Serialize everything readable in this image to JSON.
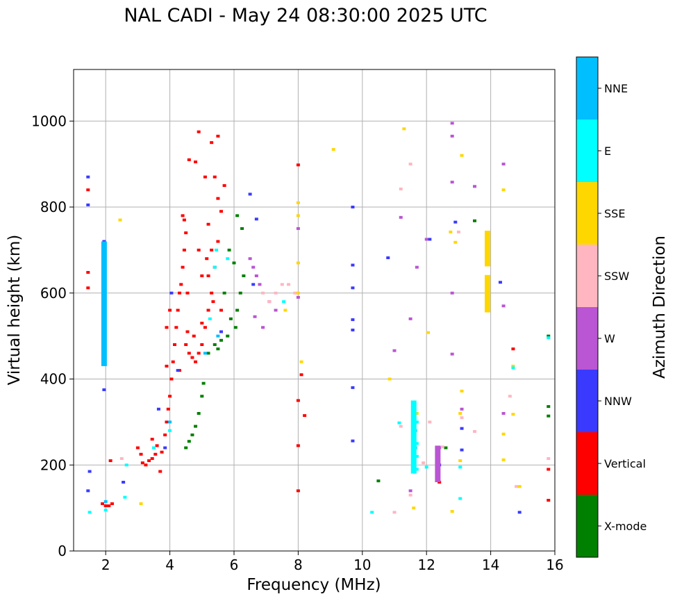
{
  "chart_data": {
    "type": "scatter",
    "title": "NAL CADI - May 24 08:30:00 2025 UTC",
    "xlabel": "Frequency (MHz)",
    "ylabel": "Virtual height (km)",
    "xlim": [
      1.0,
      16.0
    ],
    "ylim": [
      0,
      1120
    ],
    "xticks": [
      2,
      4,
      6,
      8,
      10,
      12,
      14,
      16
    ],
    "yticks": [
      0,
      200,
      400,
      600,
      800,
      1000
    ],
    "xtick_labels": [
      "2",
      "4",
      "6",
      "8",
      "10",
      "12",
      "14",
      "16"
    ],
    "ytick_labels": [
      "0",
      "200",
      "400",
      "600",
      "800",
      "1000"
    ],
    "grid": true,
    "colorbar": {
      "label": "Azimuth Direction",
      "categories": [
        {
          "name": "X-mode",
          "color": "#008000"
        },
        {
          "name": "Vertical",
          "color": "#ff0000"
        },
        {
          "name": "NNW",
          "color": "#3a3aff"
        },
        {
          "name": "W",
          "color": "#ba55d3"
        },
        {
          "name": "SSW",
          "color": "#ffb6c1"
        },
        {
          "name": "SSE",
          "color": "#ffd700"
        },
        {
          "name": "E",
          "color": "#00ffff"
        },
        {
          "name": "NNE",
          "color": "#00bfff"
        }
      ]
    },
    "series": [
      {
        "name": "Vertical",
        "color": "#ff0000",
        "points": [
          [
            1.45,
            840
          ],
          [
            1.45,
            648
          ],
          [
            1.45,
            612
          ],
          [
            1.9,
            110
          ],
          [
            2.0,
            105
          ],
          [
            2.1,
            105
          ],
          [
            2.2,
            110
          ],
          [
            2.15,
            210
          ],
          [
            3.0,
            240
          ],
          [
            3.1,
            225
          ],
          [
            3.15,
            205
          ],
          [
            3.25,
            200
          ],
          [
            3.35,
            210
          ],
          [
            3.45,
            215
          ],
          [
            3.55,
            225
          ],
          [
            3.45,
            260
          ],
          [
            3.6,
            245
          ],
          [
            3.75,
            230
          ],
          [
            3.85,
            270
          ],
          [
            3.9,
            300
          ],
          [
            3.95,
            330
          ],
          [
            4.0,
            360
          ],
          [
            4.05,
            400
          ],
          [
            4.1,
            440
          ],
          [
            4.15,
            480
          ],
          [
            4.2,
            520
          ],
          [
            4.25,
            560
          ],
          [
            4.3,
            600
          ],
          [
            4.35,
            620
          ],
          [
            4.4,
            660
          ],
          [
            4.45,
            700
          ],
          [
            4.5,
            740
          ],
          [
            4.4,
            780
          ],
          [
            3.9,
            430
          ],
          [
            3.9,
            520
          ],
          [
            4.0,
            560
          ],
          [
            4.5,
            480
          ],
          [
            4.6,
            460
          ],
          [
            4.7,
            450
          ],
          [
            4.8,
            440
          ],
          [
            4.9,
            460
          ],
          [
            5.0,
            480
          ],
          [
            5.1,
            520
          ],
          [
            5.2,
            560
          ],
          [
            5.3,
            600
          ],
          [
            4.6,
            910
          ],
          [
            4.8,
            905
          ],
          [
            5.3,
            950
          ],
          [
            5.4,
            870
          ],
          [
            5.5,
            820
          ],
          [
            5.6,
            790
          ],
          [
            5.5,
            720
          ],
          [
            5.4,
            660
          ],
          [
            5.3,
            700
          ],
          [
            5.2,
            640
          ],
          [
            5.0,
            640
          ],
          [
            4.9,
            700
          ],
          [
            5.2,
            760
          ],
          [
            5.1,
            870
          ],
          [
            4.9,
            975
          ],
          [
            5.5,
            965
          ],
          [
            5.7,
            850
          ],
          [
            5.6,
            560
          ],
          [
            3.7,
            185
          ],
          [
            4.45,
            770
          ],
          [
            4.55,
            600
          ],
          [
            4.75,
            500
          ],
          [
            5.0,
            530
          ],
          [
            5.35,
            580
          ],
          [
            5.15,
            680
          ],
          [
            4.3,
            420
          ],
          [
            4.55,
            510
          ],
          [
            8.0,
            898
          ],
          [
            8.1,
            410
          ],
          [
            8.2,
            315
          ],
          [
            8.0,
            245
          ],
          [
            8.0,
            140
          ],
          [
            8.0,
            350
          ],
          [
            12.4,
            160
          ],
          [
            14.7,
            470
          ],
          [
            15.8,
            190
          ],
          [
            15.8,
            118
          ]
        ]
      },
      {
        "name": "X-mode",
        "color": "#008000",
        "points": [
          [
            4.5,
            240
          ],
          [
            4.6,
            255
          ],
          [
            4.7,
            270
          ],
          [
            4.8,
            290
          ],
          [
            4.9,
            320
          ],
          [
            5.0,
            360
          ],
          [
            5.05,
            390
          ],
          [
            5.2,
            460
          ],
          [
            5.4,
            480
          ],
          [
            5.6,
            490
          ],
          [
            5.8,
            500
          ],
          [
            5.9,
            540
          ],
          [
            6.1,
            560
          ],
          [
            6.2,
            600
          ],
          [
            6.3,
            640
          ],
          [
            6.0,
            670
          ],
          [
            6.1,
            780
          ],
          [
            5.7,
            600
          ],
          [
            5.85,
            700
          ],
          [
            6.25,
            750
          ],
          [
            5.5,
            470
          ],
          [
            6.05,
            520
          ],
          [
            10.5,
            163
          ],
          [
            12.6,
            240
          ],
          [
            13.5,
            768
          ],
          [
            15.8,
            500
          ],
          [
            15.8,
            336
          ],
          [
            15.8,
            314
          ]
        ]
      },
      {
        "name": "NNW",
        "color": "#3a3aff",
        "points": [
          [
            1.45,
            870
          ],
          [
            1.45,
            805
          ],
          [
            1.5,
            185
          ],
          [
            1.45,
            140
          ],
          [
            1.95,
            720
          ],
          [
            1.95,
            375
          ],
          [
            2.55,
            160
          ],
          [
            3.65,
            330
          ],
          [
            3.85,
            240
          ],
          [
            4.05,
            600
          ],
          [
            4.25,
            420
          ],
          [
            5.6,
            510
          ],
          [
            6.5,
            830
          ],
          [
            6.7,
            772
          ],
          [
            6.6,
            620
          ],
          [
            9.7,
            800
          ],
          [
            9.7,
            665
          ],
          [
            9.7,
            612
          ],
          [
            9.7,
            538
          ],
          [
            9.7,
            514
          ],
          [
            9.7,
            380
          ],
          [
            9.7,
            256
          ],
          [
            11.6,
            330
          ],
          [
            12.1,
            725
          ],
          [
            12.4,
            200
          ],
          [
            12.9,
            765
          ],
          [
            13.1,
            285
          ],
          [
            13.1,
            235
          ],
          [
            14.3,
            625
          ],
          [
            14.9,
            90
          ],
          [
            10.8,
            682
          ]
        ]
      },
      {
        "name": "W",
        "color": "#ba55d3",
        "points": [
          [
            6.5,
            680
          ],
          [
            6.6,
            660
          ],
          [
            6.7,
            640
          ],
          [
            6.8,
            620
          ],
          [
            6.65,
            545
          ],
          [
            6.9,
            520
          ],
          [
            7.1,
            580
          ],
          [
            7.3,
            560
          ],
          [
            11.0,
            466
          ],
          [
            11.5,
            540
          ],
          [
            11.7,
            660
          ],
          [
            12.0,
            725
          ],
          [
            12.35,
            220
          ],
          [
            12.4,
            240
          ],
          [
            12.8,
            995
          ],
          [
            12.8,
            965
          ],
          [
            12.8,
            858
          ],
          [
            12.8,
            600
          ],
          [
            12.8,
            458
          ],
          [
            13.1,
            330
          ],
          [
            13.5,
            848
          ],
          [
            14.4,
            900
          ],
          [
            14.4,
            570
          ],
          [
            14.4,
            320
          ],
          [
            11.5,
            140
          ],
          [
            11.2,
            776
          ],
          [
            8.0,
            590
          ],
          [
            8.0,
            750
          ]
        ]
      },
      {
        "name": "SSW",
        "color": "#ffb6c1",
        "points": [
          [
            2.5,
            215
          ],
          [
            6.9,
            600
          ],
          [
            7.1,
            580
          ],
          [
            7.3,
            600
          ],
          [
            7.5,
            620
          ],
          [
            7.7,
            620
          ],
          [
            7.9,
            600
          ],
          [
            11.2,
            842
          ],
          [
            11.2,
            290
          ],
          [
            11.5,
            130
          ],
          [
            11.5,
            900
          ],
          [
            11.9,
            205
          ],
          [
            12.1,
            300
          ],
          [
            12.5,
            242
          ],
          [
            13.0,
            742
          ],
          [
            13.1,
            310
          ],
          [
            13.5,
            278
          ],
          [
            14.6,
            360
          ],
          [
            14.8,
            150
          ],
          [
            15.8,
            215
          ],
          [
            11.0,
            90
          ]
        ]
      },
      {
        "name": "SSE",
        "color": "#ffd700",
        "points": [
          [
            2.45,
            770
          ],
          [
            3.1,
            110
          ],
          [
            7.6,
            560
          ],
          [
            8.0,
            600
          ],
          [
            8.0,
            670
          ],
          [
            8.0,
            780
          ],
          [
            8.0,
            810
          ],
          [
            8.1,
            440
          ],
          [
            9.1,
            934
          ],
          [
            10.85,
            400
          ],
          [
            11.3,
            982
          ],
          [
            11.6,
            100
          ],
          [
            12.05,
            508
          ],
          [
            12.75,
            742
          ],
          [
            12.9,
            718
          ],
          [
            13.1,
            920
          ],
          [
            13.05,
            320
          ],
          [
            13.05,
            210
          ],
          [
            12.8,
            92
          ],
          [
            13.9,
            700
          ],
          [
            13.9,
            600
          ],
          [
            14.4,
            840
          ],
          [
            14.4,
            272
          ],
          [
            14.4,
            212
          ],
          [
            14.7,
            430
          ],
          [
            14.7,
            318
          ],
          [
            14.9,
            150
          ],
          [
            11.7,
            320
          ],
          [
            13.1,
            372
          ]
        ]
      },
      {
        "name": "E",
        "color": "#00ffff",
        "points": [
          [
            1.5,
            90
          ],
          [
            2.0,
            95
          ],
          [
            2.6,
            125
          ],
          [
            2.65,
            200
          ],
          [
            3.5,
            240
          ],
          [
            4.0,
            280
          ],
          [
            5.25,
            540
          ],
          [
            5.4,
            660
          ],
          [
            5.45,
            700
          ],
          [
            5.8,
            680
          ],
          [
            7.55,
            580
          ],
          [
            10.3,
            90
          ],
          [
            11.15,
            298
          ],
          [
            11.7,
            250
          ],
          [
            11.7,
            300
          ],
          [
            12.0,
            195
          ],
          [
            13.05,
            122
          ],
          [
            13.05,
            195
          ],
          [
            14.7,
            426
          ],
          [
            15.8,
            496
          ],
          [
            11.7,
            220
          ],
          [
            11.7,
            190
          ]
        ]
      },
      {
        "name": "NNE",
        "color": "#00bfff",
        "points": [
          [
            1.95,
            640
          ],
          [
            1.95,
            590
          ],
          [
            1.95,
            500
          ],
          [
            1.95,
            480
          ],
          [
            2.0,
            115
          ],
          [
            4.0,
            300
          ],
          [
            5.5,
            500
          ],
          [
            5.1,
            460
          ],
          [
            11.65,
            280
          ],
          [
            11.65,
            240
          ],
          [
            12.35,
            170
          ]
        ]
      }
    ],
    "segments": [
      {
        "name": "SSE",
        "color": "#ffd700",
        "x": 13.9,
        "y_from": 662,
        "y_to": 745
      },
      {
        "name": "SSE",
        "color": "#ffd700",
        "x": 13.9,
        "y_from": 555,
        "y_to": 642
      },
      {
        "name": "W",
        "color": "#ba55d3",
        "x": 12.35,
        "y_from": 160,
        "y_to": 245
      },
      {
        "name": "E",
        "color": "#00ffff",
        "x": 11.6,
        "y_from": 180,
        "y_to": 350
      },
      {
        "name": "NNE",
        "color": "#00bfff",
        "x": 1.95,
        "y_from": 430,
        "y_to": 720
      }
    ]
  }
}
